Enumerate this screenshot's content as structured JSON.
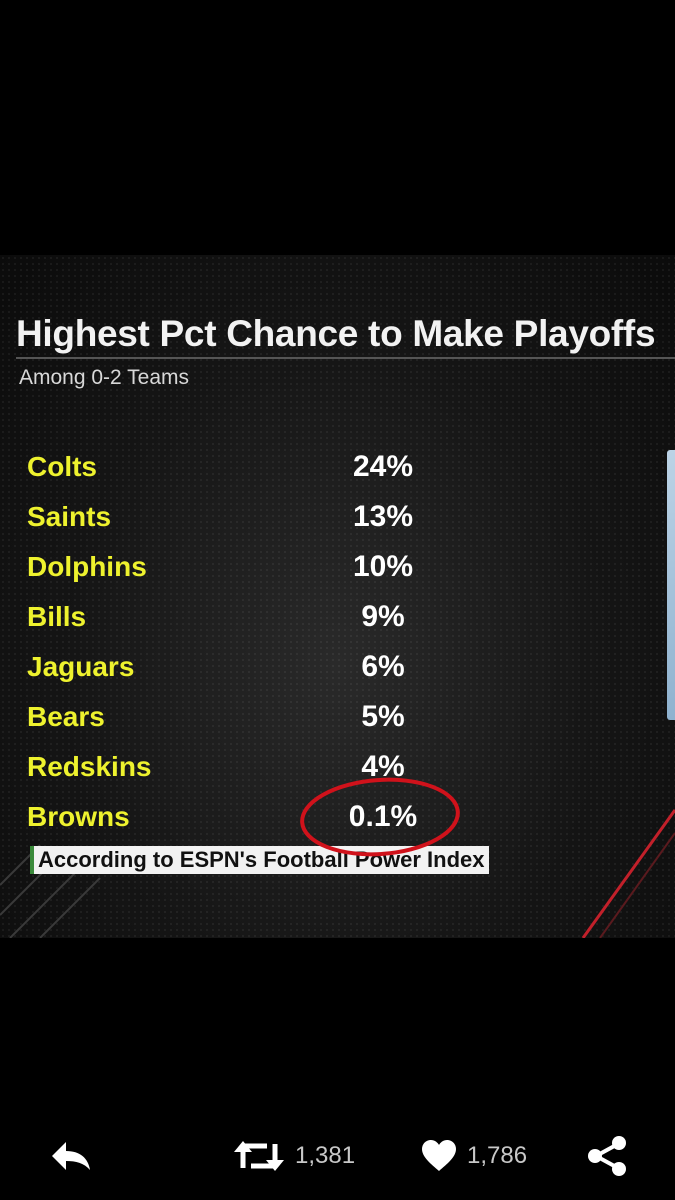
{
  "graphic": {
    "title": "Highest Pct Chance to Make Playoffs",
    "subtitle": "Among 0-2 Teams",
    "rows": [
      {
        "team": "Colts",
        "pct": "24%"
      },
      {
        "team": "Saints",
        "pct": "13%"
      },
      {
        "team": "Dolphins",
        "pct": "10%"
      },
      {
        "team": "Bills",
        "pct": "9%"
      },
      {
        "team": "Jaguars",
        "pct": "6%"
      },
      {
        "team": "Bears",
        "pct": "5%"
      },
      {
        "team": "Redskins",
        "pct": "4%"
      },
      {
        "team": "Browns",
        "pct": "0.1%"
      }
    ],
    "source": "According to ESPN's Football Power Index",
    "colors": {
      "team_text": "#eef22e",
      "pct_text": "#ffffff",
      "highlight_circle": "#d0121b"
    }
  },
  "tweet_actions": {
    "reply_icon": "reply-icon",
    "retweet_icon": "retweet-icon",
    "retweet_count": "1,381",
    "like_icon": "heart-icon",
    "like_count": "1,786",
    "share_icon": "share-icon"
  }
}
